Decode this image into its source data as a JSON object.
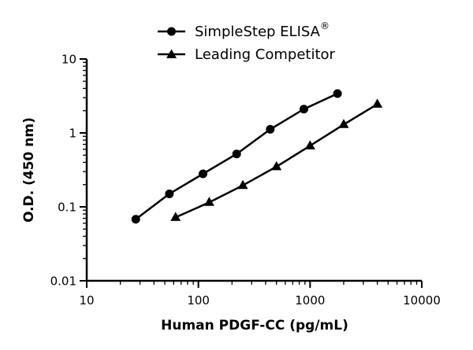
{
  "chart_data": {
    "type": "line",
    "xlabel": "Human PDGF-CC (pg/mL)",
    "ylabel": "O.D. (450 nm)",
    "x_scale": "log",
    "y_scale": "log",
    "xlim": [
      10,
      10000
    ],
    "ylim": [
      0.01,
      10
    ],
    "x_ticks": [
      "10",
      "100",
      "1000",
      "10000"
    ],
    "y_ticks": [
      "0.01",
      "0.1",
      "1",
      "10"
    ],
    "grid": false,
    "legend_position": "top",
    "series": [
      {
        "name": "SimpleStep ELISA",
        "name_superscript": "®",
        "marker": "circle",
        "color": "#000000",
        "x": [
          27.5,
          55,
          110,
          220,
          440,
          880,
          1760
        ],
        "y": [
          0.068,
          0.15,
          0.28,
          0.52,
          1.12,
          2.1,
          3.4
        ]
      },
      {
        "name": "Leading Competitor",
        "marker": "triangle",
        "color": "#000000",
        "x": [
          62.5,
          125,
          250,
          500,
          1000,
          2000,
          4000
        ],
        "y": [
          0.072,
          0.115,
          0.195,
          0.35,
          0.67,
          1.3,
          2.45
        ]
      }
    ]
  }
}
